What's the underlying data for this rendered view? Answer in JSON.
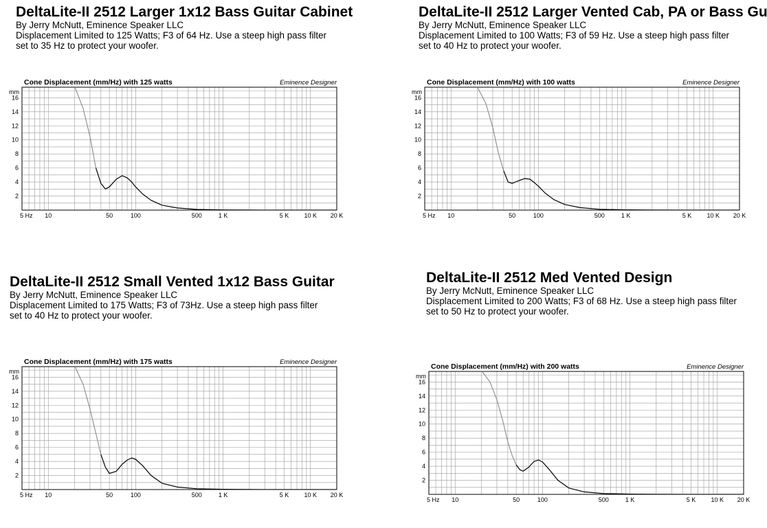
{
  "panels": [
    {
      "title": "DeltaLite-II 2512 Larger 1x12 Bass Guitar Cabinet",
      "byline": "By Jerry McNutt, Eminence Speaker LLC",
      "description": "Displacement Limited to 125 Watts; F3 of 64 Hz.   Use a steep high pass filter\nset to 35 Hz to protect your woofer."
    },
    {
      "title": "DeltaLite-II 2512 Larger Vented Cab, PA or Bass Gu",
      "byline": "By Jerry McNutt, Eminence Speaker LLC",
      "description": "Displacement Limited to 100 Watts; F3 of 59 Hz.   Use a steep high pass filter\nset to 40 Hz to protect your woofer."
    },
    {
      "title": "DeltaLite-II 2512 Small Vented 1x12 Bass Guitar",
      "byline": "By Jerry McNutt, Eminence Speaker LLC",
      "description": "Displacement Limited to 175 Watts; F3 of 73Hz.   Use a steep high pass filter\nset to 40 Hz to protect your woofer."
    },
    {
      "title": "DeltaLite-II 2512 Med Vented Design",
      "byline": "By Jerry McNutt, Eminence Speaker LLC",
      "description": "Displacement Limited to 200 Watts; F3 of 68 Hz.   Use a steep high pass filter\nset to 50 Hz to protect your woofer."
    }
  ],
  "chart_data": [
    {
      "type": "line",
      "title": "Cone Displacement (mm/Hz) with 125 watts",
      "software_label": "Eminence Designer",
      "ylabel": "mm",
      "xscale": "log",
      "xlim": [
        5,
        20000
      ],
      "ylim": [
        0,
        17.5
      ],
      "grid": true,
      "x_tick_labels": [
        "5 Hz",
        "10",
        "50",
        "100",
        "500",
        "1 K",
        "5 K",
        "10 K",
        "20 K"
      ],
      "y_tick_labels": [
        "2",
        "4",
        "6",
        "8",
        "10",
        "12",
        "14",
        "16"
      ],
      "filter_cutoff_hz": 35,
      "line_colors": {
        "below_cutoff": "#8a8a8a",
        "above_cutoff": "#000000"
      },
      "series": [
        {
          "x": [
            20,
            25,
            30,
            35,
            40,
            45,
            50,
            60,
            70,
            80,
            90,
            100,
            120,
            150,
            200,
            300,
            500,
            1000,
            2000,
            5000,
            20000
          ],
          "y": [
            17.6,
            14.5,
            10.5,
            6.0,
            3.8,
            3.0,
            3.3,
            4.4,
            4.9,
            4.6,
            4.0,
            3.3,
            2.3,
            1.4,
            0.7,
            0.3,
            0.1,
            0.03,
            0.01,
            0,
            0
          ]
        }
      ]
    },
    {
      "type": "line",
      "title": "Cone Displacement (mm/Hz) with 100 watts",
      "software_label": "Eminence Designer",
      "ylabel": "mm",
      "xscale": "log",
      "xlim": [
        5,
        20000
      ],
      "ylim": [
        0,
        17.5
      ],
      "grid": true,
      "x_tick_labels": [
        "5 Hz",
        "10",
        "50",
        "100",
        "500",
        "1 K",
        "5 K",
        "10 K",
        "20 K"
      ],
      "y_tick_labels": [
        "2",
        "4",
        "6",
        "8",
        "10",
        "12",
        "14",
        "16"
      ],
      "filter_cutoff_hz": 40,
      "line_colors": {
        "below_cutoff": "#8a8a8a",
        "above_cutoff": "#000000"
      },
      "series": [
        {
          "x": [
            20,
            25,
            30,
            35,
            40,
            45,
            50,
            60,
            70,
            80,
            90,
            100,
            120,
            150,
            200,
            300,
            500,
            1000,
            2000,
            5000,
            20000
          ],
          "y": [
            17.5,
            15.2,
            11.8,
            8.0,
            5.6,
            4.0,
            3.8,
            4.2,
            4.5,
            4.4,
            3.9,
            3.4,
            2.4,
            1.5,
            0.8,
            0.35,
            0.12,
            0.04,
            0.01,
            0,
            0
          ]
        }
      ]
    },
    {
      "type": "line",
      "title": "Cone Displacement (mm/Hz) with 175 watts",
      "software_label": "Eminence Designer",
      "ylabel": "mm",
      "xscale": "log",
      "xlim": [
        5,
        20000
      ],
      "ylim": [
        0,
        17.5
      ],
      "grid": true,
      "x_tick_labels": [
        "5 Hz",
        "10",
        "50",
        "100",
        "500",
        "1 K",
        "5 K",
        "10 K",
        "20 K"
      ],
      "y_tick_labels": [
        "2",
        "4",
        "6",
        "8",
        "10",
        "12",
        "14",
        "16"
      ],
      "filter_cutoff_hz": 40,
      "line_colors": {
        "below_cutoff": "#8a8a8a",
        "above_cutoff": "#000000"
      },
      "series": [
        {
          "x": [
            20,
            25,
            30,
            35,
            40,
            45,
            50,
            60,
            70,
            80,
            90,
            100,
            120,
            150,
            200,
            300,
            500,
            1000,
            2000,
            5000,
            20000
          ],
          "y": [
            17.6,
            15.0,
            11.5,
            8.0,
            5.0,
            3.2,
            2.3,
            2.6,
            3.6,
            4.2,
            4.5,
            4.3,
            3.4,
            2.0,
            0.9,
            0.35,
            0.12,
            0.04,
            0.01,
            0,
            0
          ]
        }
      ]
    },
    {
      "type": "line",
      "title": "Cone Displacement (mm/Hz) with 200 watts",
      "software_label": "Eminence Designer",
      "ylabel": "mm",
      "xscale": "log",
      "xlim": [
        5,
        20000
      ],
      "ylim": [
        0,
        17.5
      ],
      "grid": true,
      "x_tick_labels": [
        "5 Hz",
        "10",
        "50",
        "100",
        "500",
        "1 K",
        "5 K",
        "10 K",
        "20 K"
      ],
      "y_tick_labels": [
        "2",
        "4",
        "6",
        "8",
        "10",
        "12",
        "14",
        "16"
      ],
      "filter_cutoff_hz": 50,
      "line_colors": {
        "below_cutoff": "#8a8a8a",
        "above_cutoff": "#000000"
      },
      "series": [
        {
          "x": [
            20,
            25,
            30,
            35,
            40,
            45,
            50,
            55,
            60,
            70,
            80,
            90,
            100,
            120,
            150,
            200,
            300,
            500,
            1000,
            2000,
            5000,
            20000
          ],
          "y": [
            17.6,
            16.0,
            13.5,
            10.5,
            7.5,
            5.5,
            4.2,
            3.5,
            3.3,
            3.9,
            4.7,
            4.9,
            4.6,
            3.5,
            2.0,
            0.9,
            0.35,
            0.12,
            0.04,
            0.01,
            0,
            0
          ]
        }
      ]
    }
  ]
}
